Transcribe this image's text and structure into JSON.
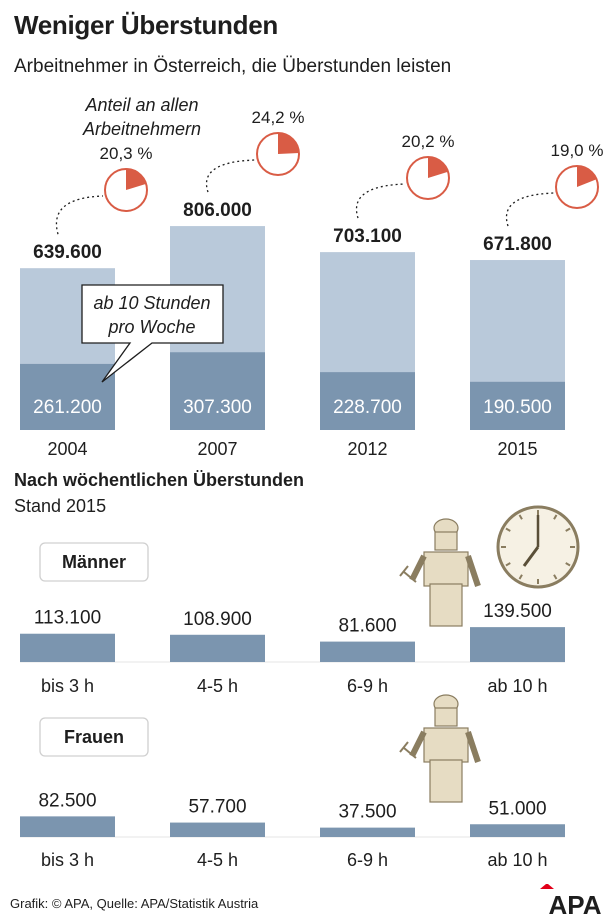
{
  "title": "Weniger Überstunden",
  "subtitle": "Arbeitnehmer in Österreich, die Überstunden leisten",
  "colors": {
    "light": "#b9c9da",
    "dark": "#7b95af",
    "accent": "#d95c45",
    "text": "#1e1e1e"
  },
  "chart_data": [
    {
      "type": "bar",
      "categories": [
        "2004",
        "2007",
        "2012",
        "2015"
      ],
      "series": [
        {
          "values": [
            639600,
            806000,
            703100,
            671800
          ]
        },
        {
          "name": "ab 10 Stunden pro Woche",
          "values": [
            261200,
            307300,
            228700,
            190500
          ]
        }
      ],
      "value_labels": [
        "639.600",
        "806.000",
        "703.100",
        "671.800"
      ],
      "sub_labels": [
        "261.200",
        "307.300",
        "228.700",
        "190.500"
      ],
      "annotation": "ab 10 Stunden pro Woche",
      "pies": {
        "heading": [
          "Anteil an allen",
          "Arbeitnehmern"
        ],
        "values": [
          20.3,
          24.2,
          20.2,
          19.0
        ],
        "labels": [
          "20,3 %",
          "24,2 %",
          "20,2 %",
          "19,0 %"
        ]
      }
    },
    {
      "type": "bar",
      "title": "Nach wöchentlichen Überstunden",
      "subtitle": "Stand 2015",
      "categories": [
        "bis 3 h",
        "4-5 h",
        "6-9 h",
        "ab 10 h"
      ],
      "series": [
        {
          "name": "Männer",
          "values": [
            113100,
            108900,
            81600,
            139500
          ],
          "labels": [
            "113.100",
            "108.900",
            "81.600",
            "139.500"
          ]
        },
        {
          "name": "Frauen",
          "values": [
            82500,
            57700,
            37500,
            51000
          ],
          "labels": [
            "82.500",
            "57.700",
            "37.500",
            "51.000"
          ]
        }
      ]
    }
  ],
  "source": "Grafik: © APA, Quelle: APA/Statistik Austria",
  "logo_text": "APA"
}
